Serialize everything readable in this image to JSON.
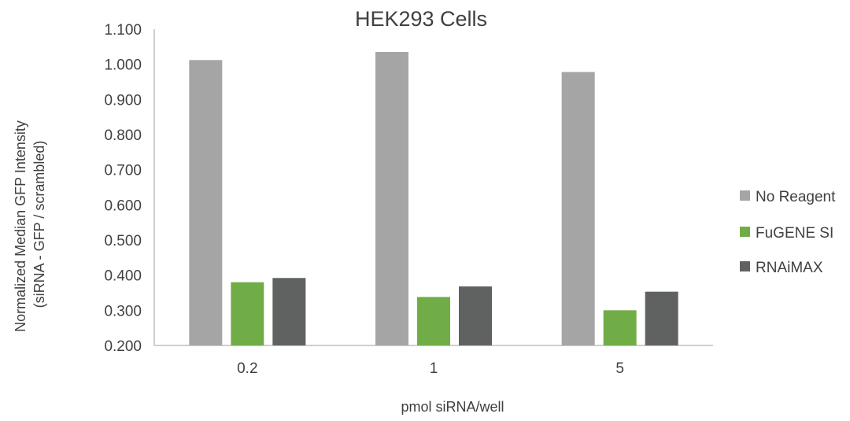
{
  "chart_data": {
    "type": "bar",
    "title": "HEK293 Cells",
    "xlabel": "pmol siRNA/well",
    "ylabel_lines": [
      "Normalized Median GFP Intensity",
      "(siRNA - GFP / scrambled)"
    ],
    "categories": [
      "0.2",
      "1",
      "5"
    ],
    "series": [
      {
        "name": "No Reagent",
        "values": [
          1.012,
          1.035,
          0.978
        ],
        "color": "#a5a5a5"
      },
      {
        "name": "FuGENE SI",
        "values": [
          0.38,
          0.338,
          0.3
        ],
        "color": "#70ad47"
      },
      {
        "name": "RNAiMAX",
        "values": [
          0.392,
          0.368,
          0.353
        ],
        "color": "#606261"
      }
    ],
    "ylim": [
      0.2,
      1.1
    ],
    "yticks": [
      "0.200",
      "0.300",
      "0.400",
      "0.500",
      "0.600",
      "0.700",
      "0.800",
      "0.900",
      "1.000",
      "1.100"
    ],
    "ytick_values": [
      0.2,
      0.3,
      0.4,
      0.5,
      0.6,
      0.7,
      0.8,
      0.9,
      1.0,
      1.1
    ],
    "grid": false,
    "legend_position": "right"
  }
}
